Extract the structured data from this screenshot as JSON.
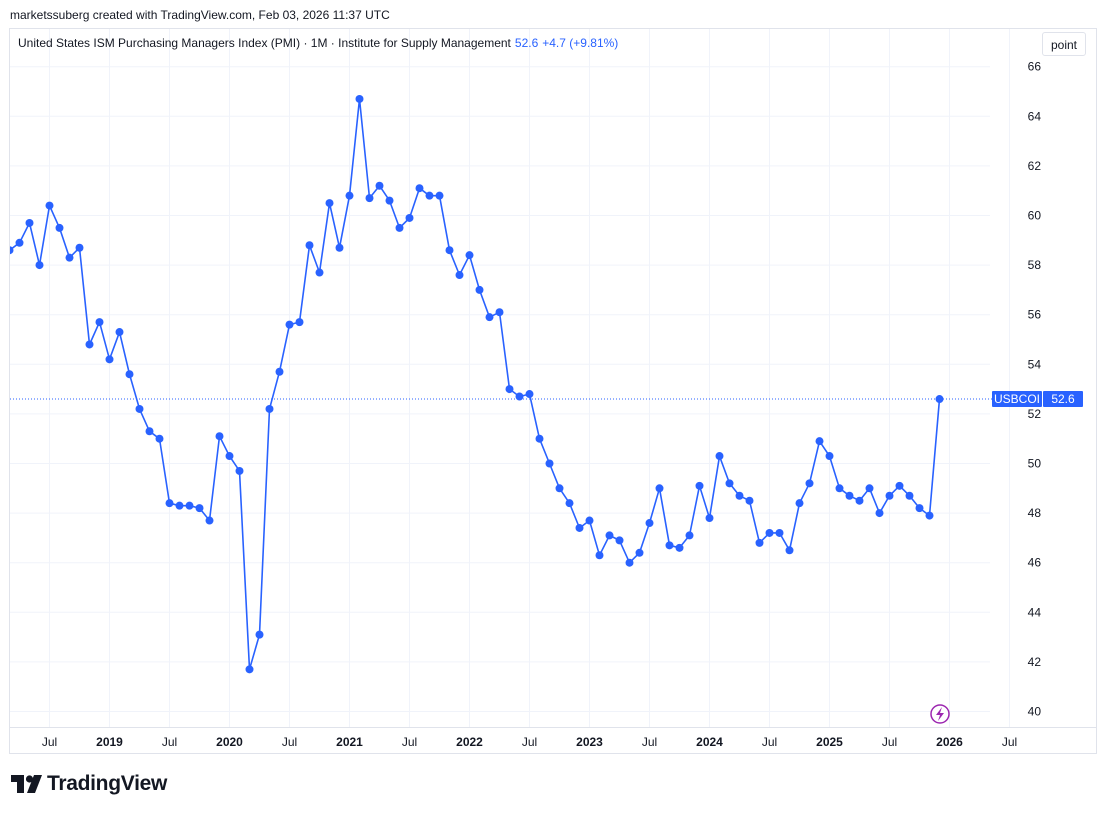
{
  "credit": "marketssuberg created with TradingView.com, Feb 03, 2026 11:37 UTC",
  "legend": {
    "title": "United States ISM Purchasing Managers Index (PMI) · 1M · Institute for Supply Management",
    "value": "52.6",
    "change": "+4.7 (+9.81%)"
  },
  "mode_button": "point",
  "brand": "TradingView",
  "price_tag": {
    "symbol": "USBCOI",
    "value": "52.6"
  },
  "colors": {
    "series": "#2962ff",
    "grid": "#f0f3fa",
    "axis_text": "#131722",
    "tag_bg": "#2962ff"
  },
  "chart_data": {
    "type": "line",
    "x_start": "2018-03",
    "interval": "1M",
    "ylim": [
      39.5,
      66.2
    ],
    "y_ticks": [
      40,
      42,
      44,
      46,
      48,
      50,
      52,
      54,
      56,
      58,
      60,
      62,
      64,
      66
    ],
    "x_ticks": [
      {
        "label": "Jul",
        "date": "2018-07",
        "bold": false
      },
      {
        "label": "2019",
        "date": "2019-01",
        "bold": true
      },
      {
        "label": "Jul",
        "date": "2019-07",
        "bold": false
      },
      {
        "label": "2020",
        "date": "2020-01",
        "bold": true
      },
      {
        "label": "Jul",
        "date": "2020-07",
        "bold": false
      },
      {
        "label": "2021",
        "date": "2021-01",
        "bold": true
      },
      {
        "label": "Jul",
        "date": "2021-07",
        "bold": false
      },
      {
        "label": "2022",
        "date": "2022-01",
        "bold": true
      },
      {
        "label": "Jul",
        "date": "2022-07",
        "bold": false
      },
      {
        "label": "2023",
        "date": "2023-01",
        "bold": true
      },
      {
        "label": "Jul",
        "date": "2023-07",
        "bold": false
      },
      {
        "label": "2024",
        "date": "2024-01",
        "bold": true
      },
      {
        "label": "Jul",
        "date": "2024-07",
        "bold": false
      },
      {
        "label": "2025",
        "date": "2025-01",
        "bold": true
      },
      {
        "label": "Jul",
        "date": "2025-07",
        "bold": false
      },
      {
        "label": "2026",
        "date": "2026-01",
        "bold": true
      },
      {
        "label": "Jul",
        "date": "2026-07",
        "bold": false
      }
    ],
    "values": [
      58.6,
      58.9,
      59.7,
      58.0,
      60.4,
      59.5,
      58.3,
      58.7,
      54.8,
      55.7,
      54.2,
      55.3,
      53.6,
      52.2,
      51.3,
      51.0,
      48.4,
      48.3,
      48.3,
      48.2,
      47.7,
      51.1,
      50.3,
      49.7,
      41.7,
      43.1,
      52.2,
      53.7,
      55.6,
      55.7,
      58.8,
      57.7,
      60.5,
      58.7,
      60.8,
      64.7,
      60.7,
      61.2,
      60.6,
      59.5,
      59.9,
      61.1,
      60.8,
      60.8,
      58.6,
      57.6,
      58.4,
      57.0,
      55.9,
      56.1,
      53.0,
      52.7,
      52.8,
      51.0,
      50.0,
      49.0,
      48.4,
      47.4,
      47.7,
      46.3,
      47.1,
      46.9,
      46.0,
      46.4,
      47.6,
      49.0,
      46.7,
      46.6,
      47.1,
      49.1,
      47.8,
      50.3,
      49.2,
      48.7,
      48.5,
      46.8,
      47.2,
      47.2,
      46.5,
      48.4,
      49.2,
      50.9,
      50.3,
      49.0,
      48.7,
      48.5,
      49.0,
      48.0,
      48.7,
      49.1,
      48.7,
      48.2,
      47.9,
      52.6
    ],
    "last_value": 52.6,
    "grid": true
  }
}
